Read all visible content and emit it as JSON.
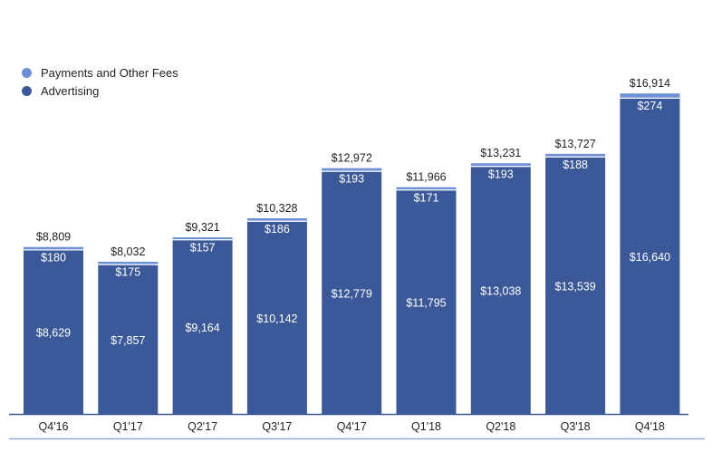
{
  "colors": {
    "advertising": "#3b5998",
    "payments": "#6d8fd6",
    "axis": "#3b5998",
    "bottom_rule": "#8fa8d8"
  },
  "legend": {
    "items": [
      {
        "label": "Payments and Other Fees",
        "color": "#6d8fd6"
      },
      {
        "label": "Advertising",
        "color": "#3b5998"
      }
    ]
  },
  "chart_data": {
    "type": "bar",
    "stacked": true,
    "legend_position": "top-left",
    "grid": false,
    "ylim": [
      0,
      18500
    ],
    "categories": [
      "Q4'16",
      "Q1'17",
      "Q2'17",
      "Q3'17",
      "Q4'17",
      "Q1'18",
      "Q2'18",
      "Q3'18",
      "Q4'18"
    ],
    "series": [
      {
        "name": "Advertising",
        "values": [
          8629,
          7857,
          9164,
          10142,
          12779,
          11795,
          13038,
          13539,
          16640
        ],
        "labels": [
          "$8,629",
          "$7,857",
          "$9,164",
          "$10,142",
          "$12,779",
          "$11,795",
          "$13,038",
          "$13,539",
          "$16,640"
        ]
      },
      {
        "name": "Payments and Other Fees",
        "values": [
          180,
          175,
          157,
          186,
          193,
          171,
          193,
          188,
          274
        ],
        "labels": [
          "$180",
          "$175",
          "$157",
          "$186",
          "$193",
          "$171",
          "$193",
          "$188",
          "$274"
        ]
      }
    ],
    "totals": [
      8809,
      8032,
      9321,
      10328,
      12972,
      11966,
      13231,
      13727,
      16914
    ],
    "total_labels": [
      "$8,809",
      "$8,032",
      "$9,321",
      "$10,328",
      "$12,972",
      "$11,966",
      "$13,231",
      "$13,727",
      "$16,914"
    ]
  }
}
